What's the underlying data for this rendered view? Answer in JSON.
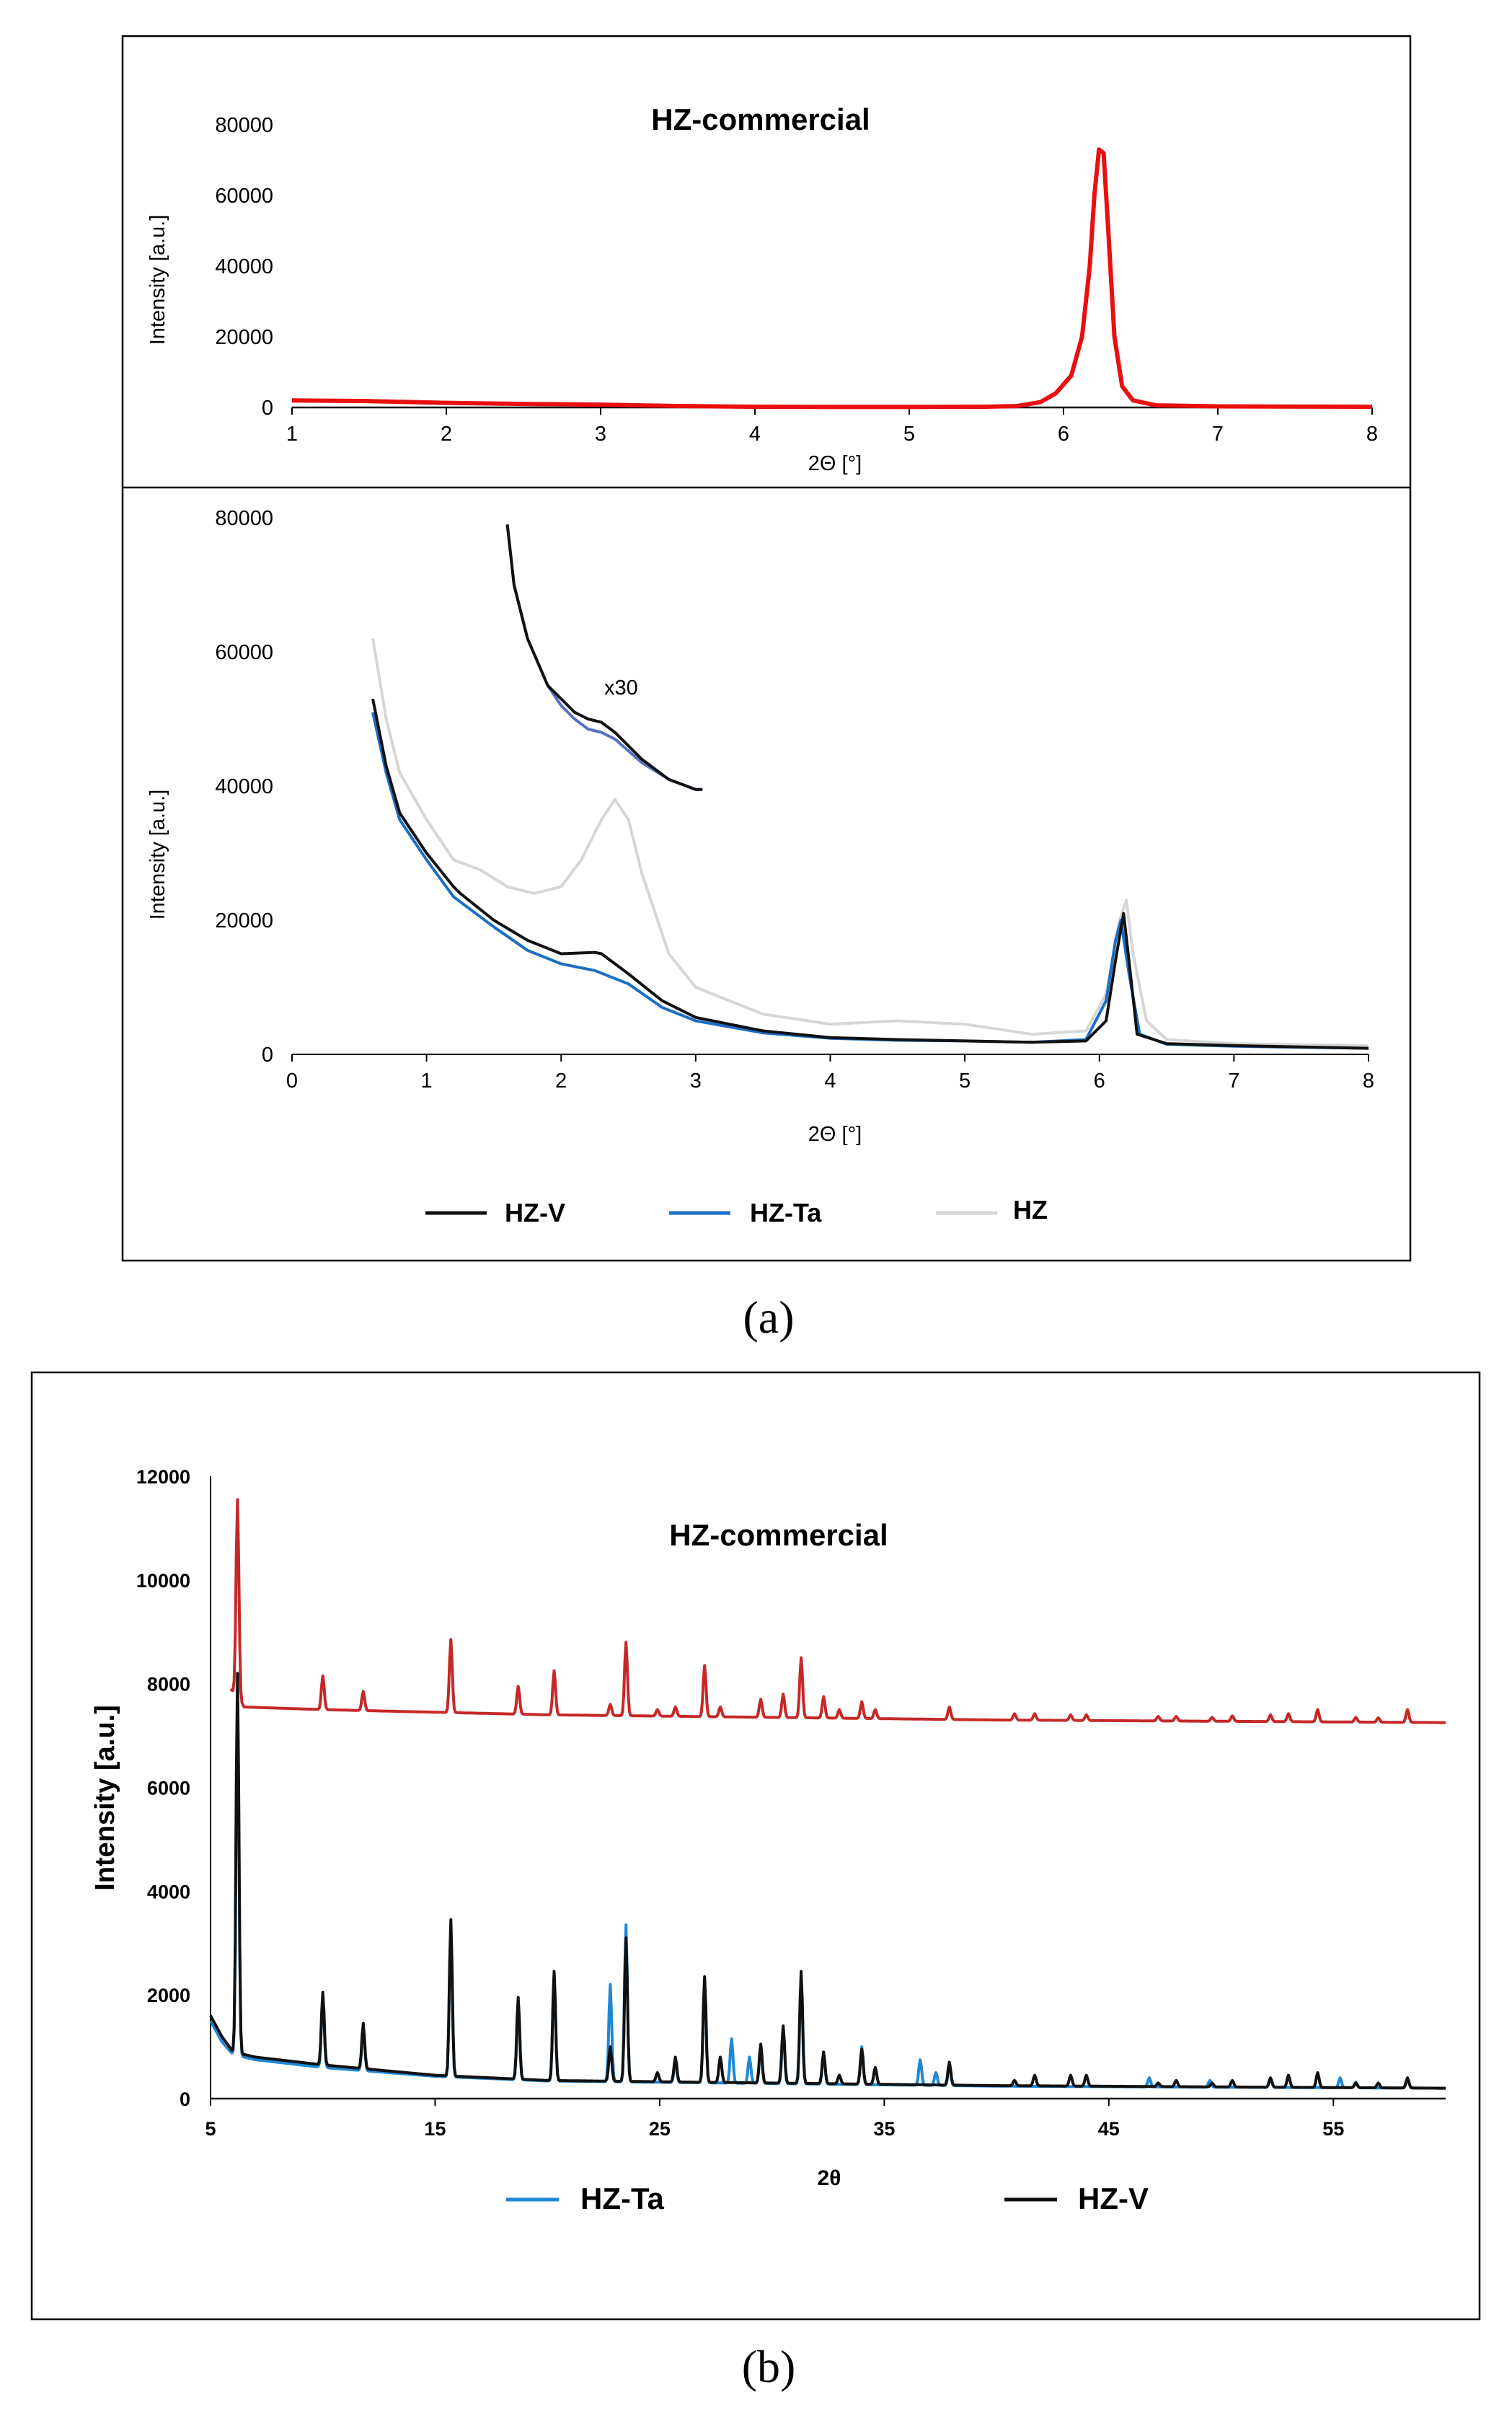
{
  "panel_a_label": "(a)",
  "panel_b_label": "(b)",
  "chart_data": [
    {
      "id": "a-top",
      "type": "line",
      "title": "HZ-commercial",
      "xlabel": "2Θ [°]",
      "ylabel": "Intensity [a.u.]",
      "xlim": [
        1,
        8
      ],
      "ylim": [
        0,
        80000
      ],
      "xticks": [
        1,
        2,
        3,
        4,
        5,
        6,
        7,
        8
      ],
      "yticks": [
        0,
        20000,
        40000,
        60000,
        80000
      ],
      "series": [
        {
          "name": "HZ-commercial",
          "color": "#e81010",
          "points": [
            [
              1.0,
              2000
            ],
            [
              1.5,
              1800
            ],
            [
              2.0,
              1300
            ],
            [
              2.5,
              1000
            ],
            [
              3.0,
              800
            ],
            [
              3.5,
              400
            ],
            [
              4.0,
              200
            ],
            [
              4.5,
              150
            ],
            [
              5.0,
              150
            ],
            [
              5.5,
              200
            ],
            [
              5.7,
              400
            ],
            [
              5.85,
              1500
            ],
            [
              5.95,
              4000
            ],
            [
              6.05,
              9000
            ],
            [
              6.12,
              20000
            ],
            [
              6.17,
              40000
            ],
            [
              6.2,
              60000
            ],
            [
              6.23,
              73000
            ],
            [
              6.26,
              72000
            ],
            [
              6.29,
              50000
            ],
            [
              6.33,
              20000
            ],
            [
              6.38,
              6000
            ],
            [
              6.45,
              2000
            ],
            [
              6.6,
              600
            ],
            [
              7.0,
              300
            ],
            [
              8.0,
              200
            ]
          ]
        }
      ]
    },
    {
      "id": "a-bottom",
      "type": "line",
      "xlabel": "2Θ [°]",
      "ylabel": "Intensity [a.u.]",
      "xlim": [
        0,
        8
      ],
      "ylim": [
        0,
        80000
      ],
      "xticks": [
        0,
        1,
        2,
        3,
        4,
        5,
        6,
        7,
        8
      ],
      "yticks": [
        0,
        20000,
        40000,
        60000,
        80000
      ],
      "annotation": "x30",
      "series": [
        {
          "name": "HZ-V",
          "color": "#111111",
          "points": [
            [
              0.6,
              53000
            ],
            [
              0.7,
              43000
            ],
            [
              0.8,
              36000
            ],
            [
              1.0,
              30000
            ],
            [
              1.2,
              25000
            ],
            [
              1.25,
              24000
            ],
            [
              1.5,
              20000
            ],
            [
              1.75,
              17000
            ],
            [
              2.0,
              15000
            ],
            [
              2.25,
              15200
            ],
            [
              2.3,
              15000
            ],
            [
              2.5,
              12000
            ],
            [
              2.75,
              8000
            ],
            [
              3.0,
              5500
            ],
            [
              3.5,
              3500
            ],
            [
              4.0,
              2500
            ],
            [
              4.5,
              2200
            ],
            [
              5.0,
              2000
            ],
            [
              5.5,
              1800
            ],
            [
              5.9,
              2000
            ],
            [
              6.05,
              5000
            ],
            [
              6.12,
              14000
            ],
            [
              6.18,
              21000
            ],
            [
              6.22,
              14000
            ],
            [
              6.28,
              3000
            ],
            [
              6.5,
              1600
            ],
            [
              7.0,
              1300
            ],
            [
              8.0,
              900
            ]
          ]
        },
        {
          "name": "HZ-Ta",
          "color": "#1a6fc4",
          "points": [
            [
              0.6,
              51000
            ],
            [
              0.7,
              42000
            ],
            [
              0.8,
              35000
            ],
            [
              1.0,
              29000
            ],
            [
              1.2,
              23500
            ],
            [
              1.5,
              19000
            ],
            [
              1.75,
              15500
            ],
            [
              2.0,
              13500
            ],
            [
              2.25,
              12500
            ],
            [
              2.5,
              10500
            ],
            [
              2.75,
              7000
            ],
            [
              3.0,
              5000
            ],
            [
              3.5,
              3200
            ],
            [
              4.0,
              2400
            ],
            [
              4.5,
              2100
            ],
            [
              5.0,
              2000
            ],
            [
              5.5,
              1800
            ],
            [
              5.9,
              2200
            ],
            [
              6.05,
              8000
            ],
            [
              6.12,
              17000
            ],
            [
              6.16,
              20000
            ],
            [
              6.22,
              12000
            ],
            [
              6.3,
              3000
            ],
            [
              6.5,
              1500
            ],
            [
              7.0,
              1200
            ],
            [
              8.0,
              900
            ]
          ]
        },
        {
          "name": "HZ",
          "color": "#d6d6d6",
          "points": [
            [
              0.6,
              62000
            ],
            [
              0.7,
              50000
            ],
            [
              0.8,
              42000
            ],
            [
              1.0,
              35000
            ],
            [
              1.2,
              29000
            ],
            [
              1.4,
              27500
            ],
            [
              1.6,
              25000
            ],
            [
              1.8,
              24000
            ],
            [
              2.0,
              25000
            ],
            [
              2.15,
              29000
            ],
            [
              2.3,
              35000
            ],
            [
              2.4,
              38000
            ],
            [
              2.5,
              35000
            ],
            [
              2.6,
              27000
            ],
            [
              2.8,
              15000
            ],
            [
              3.0,
              10000
            ],
            [
              3.5,
              6000
            ],
            [
              4.0,
              4500
            ],
            [
              4.5,
              5000
            ],
            [
              5.0,
              4500
            ],
            [
              5.5,
              3000
            ],
            [
              5.9,
              3500
            ],
            [
              6.05,
              9000
            ],
            [
              6.15,
              20000
            ],
            [
              6.2,
              23000
            ],
            [
              6.25,
              15000
            ],
            [
              6.35,
              5000
            ],
            [
              6.5,
              2200
            ],
            [
              7.0,
              1600
            ],
            [
              8.0,
              1300
            ]
          ]
        }
      ],
      "inset_series": [
        {
          "name": "HZ-V x30",
          "color": "#111111",
          "points": [
            [
              1.6,
              79000
            ],
            [
              1.65,
              70000
            ],
            [
              1.75,
              62000
            ],
            [
              1.9,
              55000
            ],
            [
              2.0,
              53000
            ],
            [
              2.1,
              51000
            ],
            [
              2.2,
              50000
            ],
            [
              2.3,
              49500
            ],
            [
              2.4,
              48000
            ],
            [
              2.6,
              44000
            ],
            [
              2.8,
              41000
            ],
            [
              3.0,
              39500
            ],
            [
              3.05,
              39500
            ]
          ]
        },
        {
          "name": "HZ-Ta x30",
          "color": "#5572c0",
          "points": [
            [
              1.6,
              79000
            ],
            [
              1.65,
              70000
            ],
            [
              1.75,
              62000
            ],
            [
              1.9,
              55000
            ],
            [
              2.0,
              52000
            ],
            [
              2.1,
              50000
            ],
            [
              2.2,
              48500
            ],
            [
              2.3,
              48000
            ],
            [
              2.4,
              47000
            ],
            [
              2.6,
              43500
            ],
            [
              2.8,
              41000
            ],
            [
              3.0,
              39500
            ],
            [
              3.05,
              39500
            ]
          ]
        }
      ],
      "legend": [
        "HZ-V",
        "HZ-Ta",
        "HZ"
      ]
    },
    {
      "id": "b",
      "type": "line",
      "title": "HZ-commercial",
      "xlabel": "2θ",
      "ylabel": "Intensity [a.u.]",
      "xlim": [
        5,
        60
      ],
      "ylim": [
        0,
        12000
      ],
      "xticks": [
        5,
        15,
        25,
        35,
        45,
        55
      ],
      "yticks": [
        0,
        2000,
        4000,
        6000,
        8000,
        10000,
        12000
      ],
      "baselines": {
        "HZ-commercial": [
          [
            5.9,
            7900
          ],
          [
            6.5,
            7550
          ],
          [
            10,
            7500
          ],
          [
            20,
            7400
          ],
          [
            30,
            7350
          ],
          [
            40,
            7300
          ],
          [
            60,
            7250
          ]
        ],
        "HZ-V": [
          [
            5,
            1600
          ],
          [
            5.5,
            1200
          ],
          [
            6,
            900
          ],
          [
            7,
            800
          ],
          [
            10,
            650
          ],
          [
            15,
            450
          ],
          [
            20,
            350
          ],
          [
            30,
            300
          ],
          [
            40,
            250
          ],
          [
            60,
            200
          ]
        ],
        "HZ-Ta": [
          [
            5,
            1500
          ],
          [
            5.5,
            1100
          ],
          [
            6,
            850
          ],
          [
            7,
            750
          ],
          [
            10,
            600
          ],
          [
            15,
            430
          ],
          [
            20,
            340
          ],
          [
            30,
            290
          ],
          [
            40,
            240
          ],
          [
            60,
            200
          ]
        ]
      },
      "peaks": {
        "HZ-commercial": [
          [
            6.2,
            11550
          ],
          [
            10.0,
            8150
          ],
          [
            11.8,
            7850
          ],
          [
            15.7,
            8850
          ],
          [
            18.7,
            7950
          ],
          [
            20.3,
            8250
          ],
          [
            22.8,
            7600
          ],
          [
            23.5,
            8800
          ],
          [
            24.9,
            7500
          ],
          [
            25.7,
            7550
          ],
          [
            27.0,
            8350
          ],
          [
            27.7,
            7550
          ],
          [
            29.5,
            7700
          ],
          [
            30.5,
            7800
          ],
          [
            31.3,
            8500
          ],
          [
            32.3,
            7750
          ],
          [
            33.0,
            7500
          ],
          [
            34.0,
            7650
          ],
          [
            34.6,
            7500
          ],
          [
            37.9,
            7550
          ],
          [
            40.8,
            7420
          ],
          [
            41.7,
            7420
          ],
          [
            43.3,
            7400
          ],
          [
            44.0,
            7400
          ],
          [
            47.2,
            7370
          ],
          [
            48.0,
            7370
          ],
          [
            49.6,
            7350
          ],
          [
            50.5,
            7380
          ],
          [
            52.2,
            7400
          ],
          [
            53.0,
            7420
          ],
          [
            54.3,
            7500
          ],
          [
            56.0,
            7350
          ],
          [
            57.0,
            7340
          ],
          [
            58.3,
            7500
          ]
        ],
        "HZ-V": [
          [
            6.2,
            8200
          ],
          [
            10.0,
            2050
          ],
          [
            11.8,
            1450
          ],
          [
            15.7,
            3450
          ],
          [
            18.7,
            1950
          ],
          [
            20.3,
            2450
          ],
          [
            22.8,
            1000
          ],
          [
            23.5,
            3100
          ],
          [
            24.9,
            500
          ],
          [
            25.7,
            800
          ],
          [
            27.0,
            2350
          ],
          [
            27.7,
            800
          ],
          [
            29.5,
            1050
          ],
          [
            30.5,
            1400
          ],
          [
            31.3,
            2450
          ],
          [
            32.3,
            900
          ],
          [
            33.0,
            450
          ],
          [
            34.0,
            950
          ],
          [
            34.6,
            600
          ],
          [
            37.9,
            700
          ],
          [
            40.8,
            350
          ],
          [
            41.7,
            450
          ],
          [
            43.3,
            450
          ],
          [
            44.0,
            450
          ],
          [
            47.2,
            300
          ],
          [
            48.0,
            350
          ],
          [
            49.6,
            300
          ],
          [
            50.5,
            350
          ],
          [
            52.2,
            400
          ],
          [
            53.0,
            450
          ],
          [
            54.3,
            500
          ],
          [
            56.0,
            300
          ],
          [
            57.0,
            300
          ],
          [
            58.3,
            400
          ]
        ],
        "HZ-Ta": [
          [
            6.2,
            7800
          ],
          [
            10.0,
            1950
          ],
          [
            11.8,
            1400
          ],
          [
            15.7,
            3350
          ],
          [
            18.7,
            1900
          ],
          [
            20.3,
            2400
          ],
          [
            22.8,
            2200
          ],
          [
            23.5,
            3350
          ],
          [
            25.7,
            700
          ],
          [
            27.0,
            2300
          ],
          [
            28.2,
            1150
          ],
          [
            29.0,
            800
          ],
          [
            29.5,
            950
          ],
          [
            30.5,
            1300
          ],
          [
            31.3,
            2350
          ],
          [
            32.3,
            850
          ],
          [
            34.0,
            1000
          ],
          [
            36.6,
            750
          ],
          [
            37.3,
            500
          ],
          [
            37.9,
            650
          ],
          [
            46.8,
            400
          ],
          [
            49.5,
            350
          ],
          [
            52.2,
            380
          ],
          [
            55.3,
            400
          ],
          [
            56.0,
            320
          ],
          [
            58.3,
            380
          ]
        ]
      },
      "series": [
        {
          "name": "HZ-commercial",
          "color": "#c62828"
        },
        {
          "name": "HZ-Ta",
          "color": "#1f88d6"
        },
        {
          "name": "HZ-V",
          "color": "#111111"
        }
      ],
      "legend": [
        "HZ-Ta",
        "HZ-V"
      ]
    }
  ]
}
